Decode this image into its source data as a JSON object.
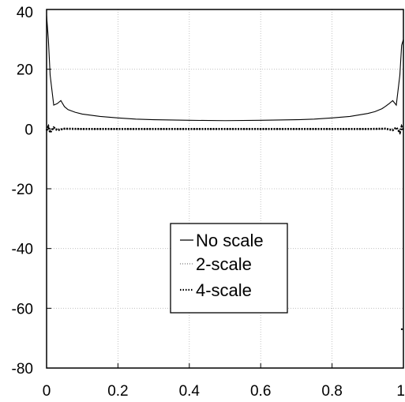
{
  "chart_data": {
    "type": "line",
    "title": "",
    "xlabel": "",
    "ylabel": "",
    "xlim": [
      0,
      1
    ],
    "ylim": [
      -80,
      40
    ],
    "x_ticks": [
      0,
      0.2,
      0.4,
      0.6,
      0.8,
      1
    ],
    "x_tick_labels": [
      "0",
      "0.2",
      "0.4",
      "0.6",
      "0.8",
      "1"
    ],
    "y_ticks": [
      40,
      20,
      0,
      -20,
      -40,
      -60,
      -80
    ],
    "y_tick_labels": [
      "40",
      "20",
      "0",
      "-20",
      "-40",
      "-60",
      "-80"
    ],
    "grid": true,
    "legend_position": "center",
    "series": [
      {
        "name": "No scale",
        "style": "solid",
        "x": [
          0,
          0.005,
          0.01,
          0.02,
          0.03,
          0.04,
          0.05,
          0.06,
          0.08,
          0.1,
          0.15,
          0.2,
          0.25,
          0.3,
          0.4,
          0.5,
          0.6,
          0.7,
          0.75,
          0.8,
          0.85,
          0.9,
          0.92,
          0.94,
          0.95,
          0.96,
          0.97,
          0.98,
          0.99,
          0.995,
          1
        ],
        "y": [
          38,
          30,
          18,
          8,
          8.5,
          9.5,
          7.5,
          6.5,
          5.6,
          5,
          4.2,
          3.7,
          3.3,
          3.1,
          2.9,
          2.8,
          2.9,
          3.1,
          3.3,
          3.7,
          4.2,
          5.2,
          5.8,
          6.8,
          7.6,
          8.5,
          9.5,
          8,
          18,
          28,
          30
        ]
      },
      {
        "name": "2-scale",
        "style": "dotted",
        "x": [
          0,
          0.01,
          0.02,
          0.05,
          0.1,
          0.2,
          0.3,
          0.4,
          0.5,
          0.6,
          0.7,
          0.8,
          0.9,
          0.95,
          0.98,
          0.99,
          1
        ],
        "y": [
          0.2,
          -0.3,
          0.2,
          0,
          0,
          0,
          0,
          0,
          0,
          0,
          0,
          0,
          0,
          0,
          0.2,
          -0.3,
          0.2
        ]
      },
      {
        "name": "4-scale",
        "style": "dotted-thick",
        "x": [
          0,
          0.005,
          0.01,
          0.02,
          0.03,
          0.05,
          0.1,
          0.2,
          0.3,
          0.4,
          0.5,
          0.6,
          0.7,
          0.8,
          0.9,
          0.95,
          0.97,
          0.98,
          0.99,
          0.995,
          1
        ],
        "y": [
          -0.5,
          0.8,
          -1.2,
          0.5,
          -0.4,
          0.1,
          0,
          0,
          0,
          0,
          0,
          0,
          0,
          0,
          0,
          0.1,
          -0.4,
          0.5,
          -1.2,
          0.8,
          -0.5
        ]
      }
    ]
  }
}
